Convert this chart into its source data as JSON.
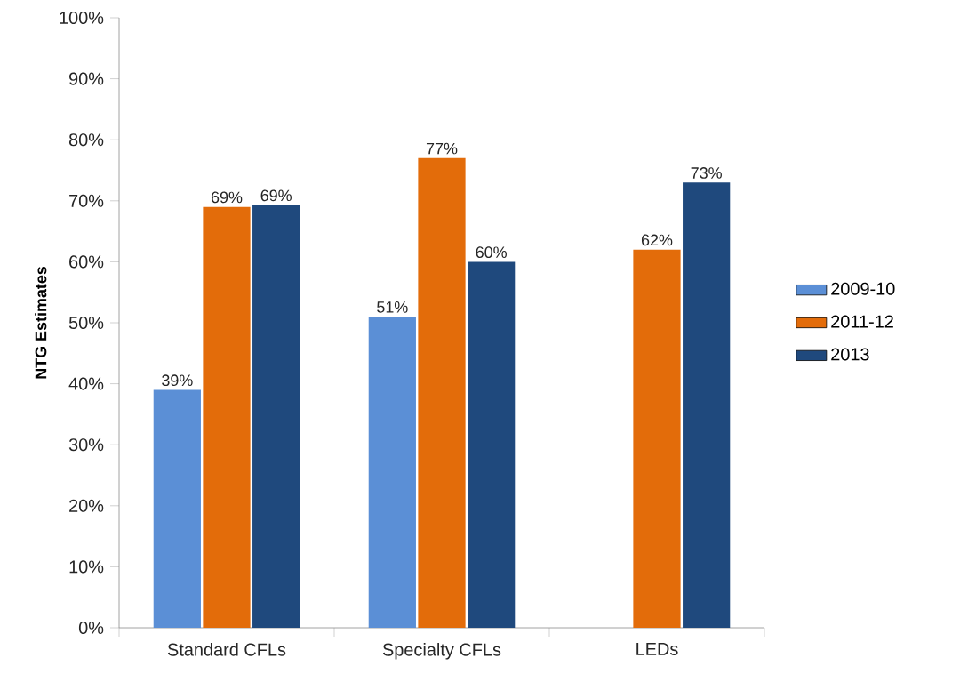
{
  "chart_data": {
    "type": "bar",
    "ylabel": "NTG Estimates",
    "categories": [
      "Standard CFLs",
      "Specialty CFLs",
      "LEDs"
    ],
    "series": [
      {
        "name": "2009-10",
        "color": "#5b8fd6",
        "values": [
          39,
          51,
          null
        ],
        "value_labels": [
          "39%",
          "51%",
          null
        ]
      },
      {
        "name": "2011-12",
        "color": "#e36c0a",
        "values": [
          69,
          77,
          62
        ],
        "value_labels": [
          "69%",
          "77%",
          "62%"
        ]
      },
      {
        "name": "2013",
        "color": "#1f497d",
        "values": [
          69.3,
          60,
          73
        ],
        "value_labels": [
          "69%",
          "60%",
          "73%"
        ]
      }
    ],
    "ylim": [
      0,
      100
    ],
    "yticks": [
      {
        "value": 0,
        "label": "0%"
      },
      {
        "value": 10,
        "label": "10%"
      },
      {
        "value": 20,
        "label": "20%"
      },
      {
        "value": 30,
        "label": "30%"
      },
      {
        "value": 40,
        "label": "40%"
      },
      {
        "value": 50,
        "label": "50%"
      },
      {
        "value": 60,
        "label": "60%"
      },
      {
        "value": 70,
        "label": "70%"
      },
      {
        "value": 80,
        "label": "80%"
      },
      {
        "value": 90,
        "label": "90%"
      },
      {
        "value": 100,
        "label": "100%"
      }
    ],
    "grid": false,
    "legend": "right"
  }
}
